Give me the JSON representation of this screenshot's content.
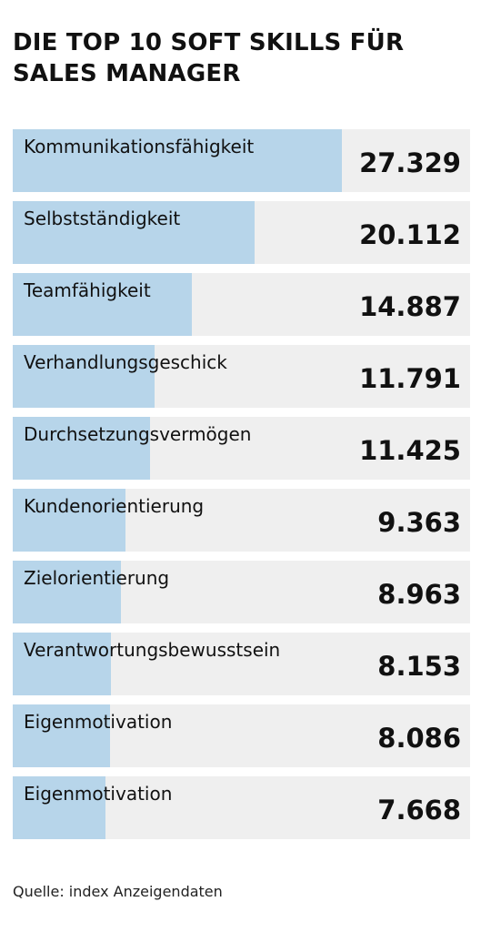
{
  "title": "DIE TOP 10 SOFT SKILLS FÜR SALES MANAGER",
  "source": "Quelle: index Anzeigendaten",
  "colors": {
    "bar": "#b7d5ea",
    "track": "#efefef",
    "text": "#111111"
  },
  "chart_data": {
    "type": "bar",
    "orientation": "horizontal",
    "title": "DIE TOP 10 SOFT SKILLS FÜR SALES MANAGER",
    "categories": [
      "Kommunikationsfähigkeit",
      "Selbstständigkeit",
      "Teamfähigkeit",
      "Verhandlungsgeschick",
      "Durchsetzungsvermögen",
      "Kundenorientierung",
      "Zielorientierung",
      "Verantwortungsbewusstsein",
      "Eigenmotivation",
      "Eigenmotivation"
    ],
    "values": [
      27329,
      20112,
      14887,
      11791,
      11425,
      9363,
      8963,
      8153,
      8086,
      7668
    ],
    "value_labels": [
      "27.329",
      "20.112",
      "14.887",
      "11.791",
      "11.425",
      "9.363",
      "8.963",
      "8.153",
      "8.086",
      "7.668"
    ],
    "xlim": [
      0,
      38000
    ],
    "grid": false,
    "legend": "none"
  }
}
